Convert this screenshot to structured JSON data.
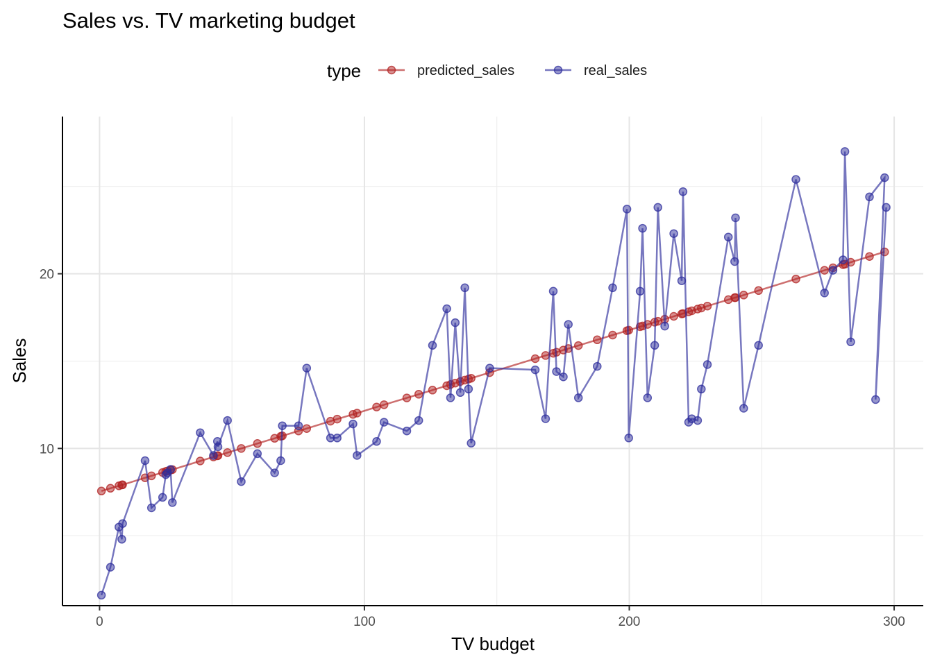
{
  "chart_data": {
    "type": "line",
    "title": "Sales vs. TV marketing budget",
    "xlabel": "TV budget",
    "ylabel": "Sales",
    "xlim": [
      -14,
      311
    ],
    "ylim": [
      1,
      29
    ],
    "x_ticks": [
      0,
      100,
      200,
      300
    ],
    "y_ticks": [
      10,
      20
    ],
    "grid": true,
    "legend": {
      "title": "type",
      "placement": "top"
    },
    "series": [
      {
        "name": "predicted_sales",
        "color": "#b22222",
        "points": [
          [
            0.7,
            7.56
          ],
          [
            4.1,
            7.72
          ],
          [
            7.3,
            7.86
          ],
          [
            8.4,
            7.91
          ],
          [
            8.7,
            7.92
          ],
          [
            17.2,
            8.32
          ],
          [
            19.6,
            8.43
          ],
          [
            23.8,
            8.62
          ],
          [
            25.0,
            8.68
          ],
          [
            25.6,
            8.71
          ],
          [
            26.8,
            8.76
          ],
          [
            27.5,
            8.79
          ],
          [
            38.0,
            9.28
          ],
          [
            43.0,
            9.51
          ],
          [
            44.5,
            9.58
          ],
          [
            44.7,
            9.59
          ],
          [
            48.3,
            9.76
          ],
          [
            53.5,
            10.0
          ],
          [
            59.6,
            10.28
          ],
          [
            66.1,
            10.58
          ],
          [
            68.4,
            10.69
          ],
          [
            69.0,
            10.72
          ],
          [
            75.1,
            11.0
          ],
          [
            78.2,
            11.14
          ],
          [
            87.2,
            11.56
          ],
          [
            89.7,
            11.68
          ],
          [
            95.7,
            11.95
          ],
          [
            97.2,
            12.02
          ],
          [
            104.6,
            12.37
          ],
          [
            107.4,
            12.5
          ],
          [
            116.0,
            12.89
          ],
          [
            120.5,
            13.1
          ],
          [
            125.7,
            13.34
          ],
          [
            131.1,
            13.59
          ],
          [
            132.5,
            13.66
          ],
          [
            134.3,
            13.74
          ],
          [
            136.2,
            13.83
          ],
          [
            137.9,
            13.91
          ],
          [
            139.3,
            13.97
          ],
          [
            140.3,
            14.02
          ],
          [
            147.3,
            14.34
          ],
          [
            164.5,
            15.14
          ],
          [
            168.4,
            15.32
          ],
          [
            171.3,
            15.45
          ],
          [
            172.5,
            15.51
          ],
          [
            175.1,
            15.63
          ],
          [
            177.0,
            15.72
          ],
          [
            180.8,
            15.89
          ],
          [
            187.9,
            16.22
          ],
          [
            193.7,
            16.49
          ],
          [
            199.1,
            16.74
          ],
          [
            199.8,
            16.77
          ],
          [
            204.1,
            16.97
          ],
          [
            205.0,
            17.01
          ],
          [
            206.9,
            17.1
          ],
          [
            209.6,
            17.23
          ],
          [
            210.8,
            17.28
          ],
          [
            213.4,
            17.4
          ],
          [
            216.8,
            17.56
          ],
          [
            219.8,
            17.7
          ],
          [
            220.3,
            17.72
          ],
          [
            222.4,
            17.82
          ],
          [
            223.6,
            17.88
          ],
          [
            225.8,
            17.98
          ],
          [
            227.2,
            18.04
          ],
          [
            229.5,
            18.15
          ],
          [
            237.4,
            18.52
          ],
          [
            239.8,
            18.63
          ],
          [
            240.1,
            18.64
          ],
          [
            243.2,
            18.78
          ],
          [
            248.8,
            19.04
          ],
          [
            262.9,
            19.7
          ],
          [
            273.7,
            20.2
          ],
          [
            276.9,
            20.34
          ],
          [
            280.7,
            20.52
          ],
          [
            281.4,
            20.55
          ],
          [
            283.6,
            20.66
          ],
          [
            290.7,
            20.99
          ],
          [
            296.4,
            21.25
          ]
        ]
      },
      {
        "name": "real_sales",
        "color": "#2e2e9c",
        "points": [
          [
            0.7,
            1.6
          ],
          [
            4.1,
            3.2
          ],
          [
            7.3,
            5.5
          ],
          [
            8.4,
            4.8
          ],
          [
            8.7,
            5.7
          ],
          [
            17.2,
            9.3
          ],
          [
            19.6,
            6.6
          ],
          [
            23.8,
            7.2
          ],
          [
            25.0,
            8.5
          ],
          [
            25.6,
            8.6
          ],
          [
            26.8,
            8.8
          ],
          [
            27.5,
            6.9
          ],
          [
            38.0,
            10.9
          ],
          [
            43.0,
            9.6
          ],
          [
            44.5,
            10.4
          ],
          [
            44.7,
            10.1
          ],
          [
            48.3,
            11.6
          ],
          [
            53.5,
            8.1
          ],
          [
            59.6,
            9.7
          ],
          [
            66.1,
            8.6
          ],
          [
            68.4,
            9.3
          ],
          [
            69.0,
            11.3
          ],
          [
            75.1,
            11.3
          ],
          [
            78.2,
            14.6
          ],
          [
            87.2,
            10.6
          ],
          [
            89.7,
            10.6
          ],
          [
            95.7,
            11.4
          ],
          [
            97.2,
            9.6
          ],
          [
            104.6,
            10.4
          ],
          [
            107.4,
            11.5
          ],
          [
            116.0,
            11.0
          ],
          [
            120.5,
            11.6
          ],
          [
            125.7,
            15.9
          ],
          [
            131.1,
            18.0
          ],
          [
            132.5,
            12.9
          ],
          [
            134.3,
            17.2
          ],
          [
            136.2,
            13.2
          ],
          [
            137.9,
            19.2
          ],
          [
            139.3,
            13.4
          ],
          [
            140.3,
            10.3
          ],
          [
            147.3,
            14.6
          ],
          [
            164.5,
            14.5
          ],
          [
            168.4,
            11.7
          ],
          [
            171.3,
            19.0
          ],
          [
            172.5,
            14.4
          ],
          [
            175.1,
            14.1
          ],
          [
            177.0,
            17.1
          ],
          [
            180.8,
            12.9
          ],
          [
            187.9,
            14.7
          ],
          [
            193.7,
            19.2
          ],
          [
            199.1,
            23.7
          ],
          [
            199.8,
            10.6
          ],
          [
            204.1,
            19.0
          ],
          [
            205.0,
            22.6
          ],
          [
            206.9,
            12.9
          ],
          [
            209.6,
            15.9
          ],
          [
            210.8,
            23.8
          ],
          [
            213.4,
            17.0
          ],
          [
            216.8,
            22.3
          ],
          [
            219.8,
            19.6
          ],
          [
            220.3,
            24.7
          ],
          [
            222.4,
            11.5
          ],
          [
            223.6,
            11.7
          ],
          [
            225.8,
            11.6
          ],
          [
            227.2,
            13.4
          ],
          [
            229.5,
            14.8
          ],
          [
            237.4,
            22.1
          ],
          [
            239.8,
            20.7
          ],
          [
            240.1,
            23.2
          ],
          [
            243.2,
            12.3
          ],
          [
            248.8,
            15.9
          ],
          [
            262.9,
            25.4
          ],
          [
            273.7,
            18.9
          ],
          [
            276.9,
            20.2
          ],
          [
            280.7,
            20.8
          ],
          [
            281.4,
            27.0
          ],
          [
            283.6,
            16.1
          ],
          [
            290.7,
            24.4
          ],
          [
            296.4,
            25.5
          ],
          [
            293.0,
            12.8
          ],
          [
            297.0,
            23.8
          ]
        ]
      }
    ]
  }
}
